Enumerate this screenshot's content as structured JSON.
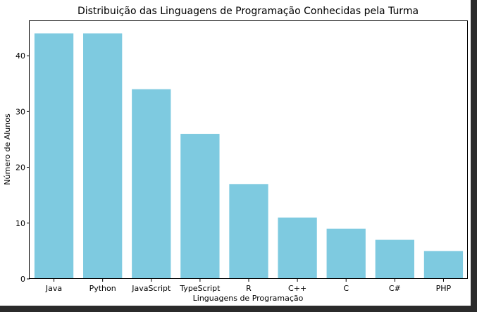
{
  "chart_data": {
    "type": "bar",
    "title": "Distribuição das Linguagens de Programação Conhecidas pela Turma",
    "xlabel": "Linguagens de Programação",
    "ylabel": "Número de Alunos",
    "categories": [
      "Java",
      "Python",
      "JavaScript",
      "TypeScript",
      "R",
      "C++",
      "C",
      "C#",
      "PHP"
    ],
    "values": [
      44,
      44,
      34,
      26,
      17,
      11,
      9,
      7,
      5
    ],
    "yticks": [
      0,
      10,
      20,
      30,
      40
    ],
    "ylim": [
      0,
      46.2
    ],
    "bar_color": "#7ecae0",
    "grid": false,
    "legend": "none"
  }
}
